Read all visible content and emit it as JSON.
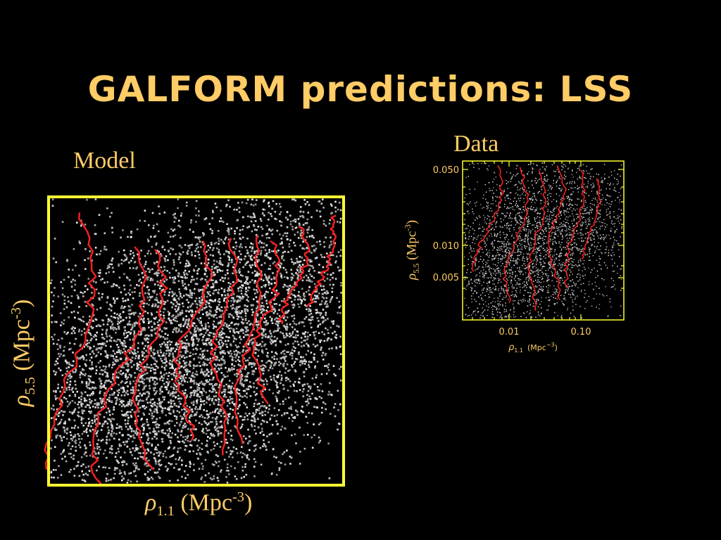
{
  "title": "GALFORM predictions: LSS",
  "chart_data": [
    {
      "type": "scatter",
      "name": "Model",
      "label": "Model",
      "xlabel": {
        "symbol": "ρ",
        "sub": "1.1",
        "unit": "(Mpc",
        "sup": "-3",
        "close": ")"
      },
      "ylabel": {
        "symbol": "ρ",
        "sub": "5.5",
        "unit": "(Mpc",
        "sup": "-3",
        "close": ")"
      },
      "points": "galaxy density scatter with red density contours",
      "colors": {
        "frame": "#ffff33",
        "points": "#bbbbbb",
        "contours": "#ff2020"
      }
    },
    {
      "type": "scatter",
      "name": "Data",
      "label": "Data",
      "xscale": "log",
      "yscale": "log",
      "xticks": [
        "0.01",
        "0.10"
      ],
      "yticks": [
        "0.050",
        "0.010",
        "0.005"
      ],
      "xlabel": {
        "symbol": "ρ",
        "sub": "1.1",
        "unit": "(Mpc",
        "sup": "−3",
        "close": ")"
      },
      "ylabel": {
        "symbol": "ρ",
        "sub": "5.5",
        "unit": "(Mpc",
        "sup": "-3",
        "close": ")"
      },
      "colors": {
        "frame": "#ffff33",
        "points": "#bbbbbb",
        "contours": "#ff2020"
      }
    }
  ]
}
